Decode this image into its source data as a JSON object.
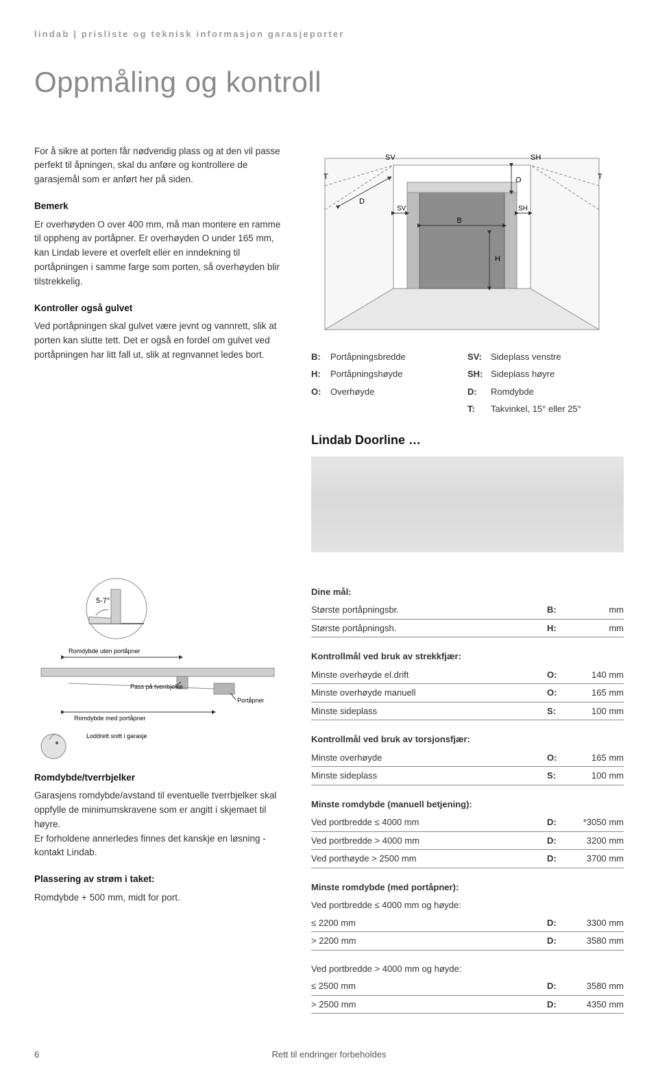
{
  "running_header": "lindab | prisliste og teknisk informasjon garasjeporter",
  "title": "Oppmåling og kontroll",
  "intro": "For å sikre at porten får nødvendig plass og at den vil passe perfekt til åpningen, skal du anføre og kontrollere de garasjemål som er anført her på siden.",
  "bemerk_head": "Bemerk",
  "bemerk_body": "Er overhøyden O over 400 mm, må man montere en ramme til oppheng av portåpner. Er overhøyden O under 165 mm, kan Lindab levere et overfelt eller en inndekning til portåpningen i samme farge som porten, så overhøyden blir tilstrekkelig.",
  "gulv_head": "Kontroller også gulvet",
  "gulv_body": "Ved portåpningen skal gulvet være jevnt og vannrett, slik at porten kan slutte tett. Det er også en fordel om gulvet ved portåpningen har litt fall ut, slik at regnvannet ledes bort.",
  "diagram": {
    "labels": {
      "T": "T",
      "SV": "SV",
      "SH": "SH",
      "D": "D",
      "O": "O",
      "B": "B",
      "H": "H"
    },
    "stroke": "#8c8c8c",
    "fill_light": "#d0d0d0",
    "fill_door": "#888888",
    "bg": "#f7f7f7"
  },
  "legend": [
    {
      "k": "B:",
      "v": "Portåpningsbredde"
    },
    {
      "k": "SV:",
      "v": "Sideplass venstre"
    },
    {
      "k": "H:",
      "v": "Portåpningshøyde"
    },
    {
      "k": "SH:",
      "v": "Sideplass høyre"
    },
    {
      "k": "O:",
      "v": "Overhøyde"
    },
    {
      "k": "D:",
      "v": "Romdybde"
    },
    {
      "k": "",
      "v": ""
    },
    {
      "k": "T:",
      "v": "Takvinkel, 15° eller 25°"
    }
  ],
  "brand": "Lindab Doorline …",
  "angle_label": "5-7°",
  "depth_labels": {
    "rom_uten": "Romdybde uten portåpner",
    "pass": "Pass på tverrbjelke",
    "portapner": "Portåpner",
    "rom_med": "Romdybde med portåpner",
    "snitt": "Loddrett snitt i garasje"
  },
  "romdybde_head": "Romdybde/tverrbjelker",
  "romdybde_body": "Garasjens romdybde/avstand til eventuelle tverrbjelker skal oppfylle de minimumskravene som er angitt i skjemaet til høyre.\nEr forholdene annerledes finnes det kanskje en løsning - kontakt Lindab.",
  "strom_head": "Plassering av strøm i taket:",
  "strom_body": "Romdybde + 500 mm, midt for port.",
  "dine_maal": "Dine mål:",
  "rows_user": [
    {
      "label": "Største portåpningsbr.",
      "key": "B:",
      "val": "mm"
    },
    {
      "label": "Største portåpningsh.",
      "key": "H:",
      "val": "mm"
    }
  ],
  "k1_head": "Kontrollmål ved bruk av strekkfjær:",
  "k1_rows": [
    {
      "label": "Minste overhøyde el.drift",
      "key": "O:",
      "val": "140 mm"
    },
    {
      "label": "Minste overhøyde manuell",
      "key": "O:",
      "val": "165 mm"
    },
    {
      "label": "Minste sideplass",
      "key": "S:",
      "val": "100 mm"
    }
  ],
  "k2_head": "Kontrollmål ved bruk av torsjonsfjær:",
  "k2_rows": [
    {
      "label": "Minste overhøyde",
      "key": "O:",
      "val": "165 mm"
    },
    {
      "label": "Minste sideplass",
      "key": "S:",
      "val": "100 mm"
    }
  ],
  "man_head": "Minste romdybde (manuell betjening):",
  "man_rows": [
    {
      "label": "Ved portbredde ≤ 4000 mm",
      "key": "D:",
      "val": "*3050 mm"
    },
    {
      "label": "Ved portbredde > 4000 mm",
      "key": "D:",
      "val": "3200 mm"
    },
    {
      "label": "Ved porthøyde > 2500 mm",
      "key": "D:",
      "val": "3700 mm"
    }
  ],
  "med_head": "Minste romdybde (med portåpner):",
  "med_sub1": "Ved portbredde ≤ 4000 mm og høyde:",
  "med_rows1": [
    {
      "label": "≤ 2200 mm",
      "key": "D:",
      "val": "3300 mm"
    },
    {
      "label": "> 2200 mm",
      "key": "D:",
      "val": "3580 mm"
    }
  ],
  "med_sub2": "Ved portbredde > 4000 mm og høyde:",
  "med_rows2": [
    {
      "label": "≤ 2500 mm",
      "key": "D:",
      "val": "3580 mm"
    },
    {
      "label": "> 2500 mm",
      "key": "D:",
      "val": "4350 mm"
    }
  ],
  "footer_page": "6",
  "footer_text": "Rett til endringer forbeholdes"
}
